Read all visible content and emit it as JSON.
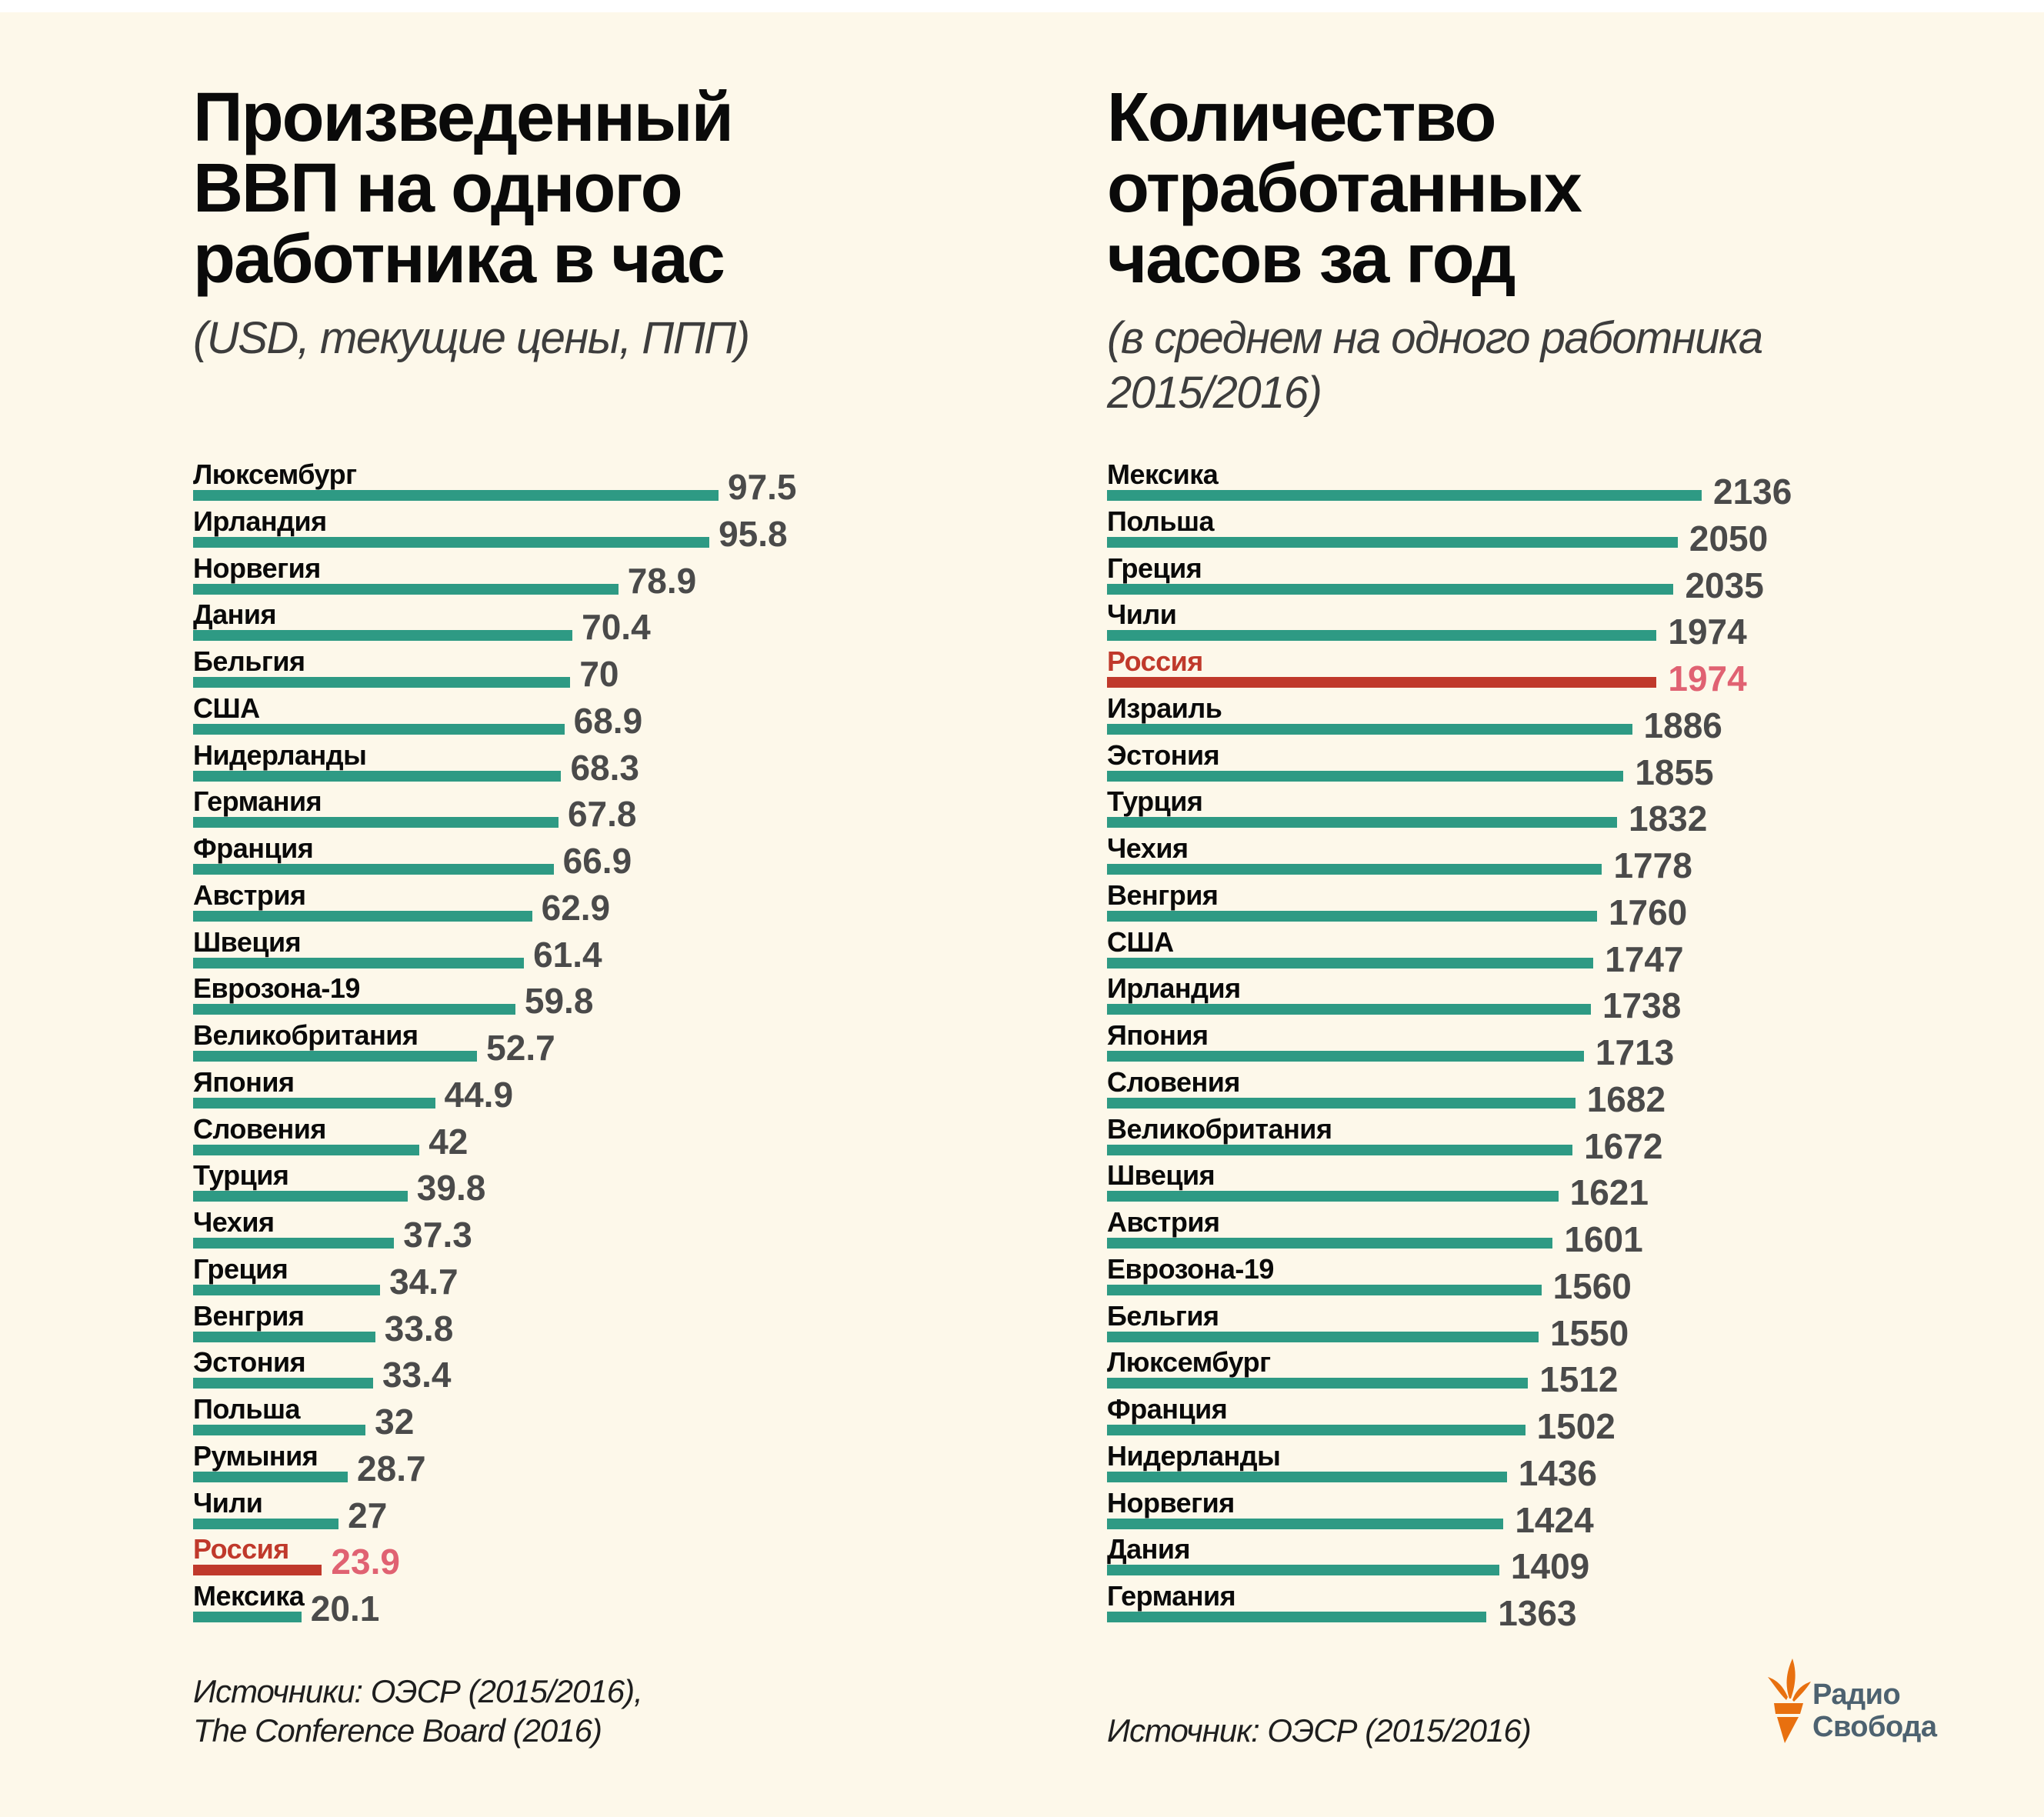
{
  "colors": {
    "background": "#fdf8ea",
    "bar": "#2e9a84",
    "highlight_bar": "#c0392b",
    "highlight_label": "#c0392b",
    "highlight_value": "#e06272",
    "value_text": "#4a4a4a",
    "logo_orange": "#e8700f",
    "logo_text": "#4d6270"
  },
  "logo": {
    "line1": "Радио",
    "line2": "Свобода"
  },
  "chart_data": [
    {
      "type": "bar",
      "orientation": "horizontal",
      "title_lines": [
        "Произведенный",
        "ВВП на одного",
        "работника в час"
      ],
      "title": "Произведенный ВВП на одного работника в час",
      "subtitle_lines": [
        "(USD, текущие цены, ППП)"
      ],
      "xlabel": "",
      "ylabel": "",
      "xlim": [
        0,
        100
      ],
      "grid": false,
      "highlight": "Россия",
      "categories": [
        "Люксембург",
        "Ирландия",
        "Норвегия",
        "Дания",
        "Бельгия",
        "США",
        "Нидерланды",
        "Германия",
        "Франция",
        "Австрия",
        "Швеция",
        "Еврозона-19",
        "Великобритания",
        "Япония",
        "Словения",
        "Турция",
        "Чехия",
        "Греция",
        "Венгрия",
        "Эстония",
        "Польша",
        "Румыния",
        "Чили",
        "Россия",
        "Мексика"
      ],
      "values": [
        97.5,
        95.8,
        78.9,
        70.4,
        70,
        68.9,
        68.3,
        67.8,
        66.9,
        62.9,
        61.4,
        59.8,
        52.7,
        44.9,
        42,
        39.8,
        37.3,
        34.7,
        33.8,
        33.4,
        32,
        28.7,
        27,
        23.9,
        20.1
      ],
      "value_labels": [
        "97.5",
        "95.8",
        "78.9",
        "70.4",
        "70",
        "68.9",
        "68.3",
        "67.8",
        "66.9",
        "62.9",
        "61.4",
        "59.8",
        "52.7",
        "44.9",
        "42",
        "39.8",
        "37.3",
        "34.7",
        "33.8",
        "33.4",
        "32",
        "28.7",
        "27",
        "23.9",
        "20.1"
      ],
      "source_lines": [
        "Источники: ОЭСР (2015/2016),",
        "The Conference Board (2016)"
      ]
    },
    {
      "type": "bar",
      "orientation": "horizontal",
      "title_lines": [
        "Количество",
        "отработанных",
        "часов за год"
      ],
      "title": "Количество отработанных часов за год",
      "subtitle_lines": [
        "(в среднем на одного работника",
        "2015/2016)"
      ],
      "xlabel": "",
      "ylabel": "",
      "xlim": [
        0,
        2200
      ],
      "grid": false,
      "highlight": "Россия",
      "categories": [
        "Мексика",
        "Польша",
        "Греция",
        "Чили",
        "Россия",
        "Израиль",
        "Эстония",
        "Турция",
        "Чехия",
        "Венгрия",
        "США",
        "Ирландия",
        "Япония",
        "Словения",
        "Великобритания",
        "Швеция",
        "Австрия",
        "Еврозона-19",
        "Бельгия",
        "Люксембург",
        "Франция",
        "Нидерланды",
        "Норвегия",
        "Дания",
        "Германия"
      ],
      "values": [
        2136,
        2050,
        2035,
        1974,
        1974,
        1886,
        1855,
        1832,
        1778,
        1760,
        1747,
        1738,
        1713,
        1682,
        1672,
        1621,
        1601,
        1560,
        1550,
        1512,
        1502,
        1436,
        1424,
        1409,
        1363
      ],
      "value_labels": [
        "2136",
        "2050",
        "2035",
        "1974",
        "1974",
        "1886",
        "1855",
        "1832",
        "1778",
        "1760",
        "1747",
        "1738",
        "1713",
        "1682",
        "1672",
        "1621",
        "1601",
        "1560",
        "1550",
        "1512",
        "1502",
        "1436",
        "1424",
        "1409",
        "1363"
      ],
      "source_lines": [
        "Источник: ОЭСР (2015/2016)"
      ]
    }
  ]
}
